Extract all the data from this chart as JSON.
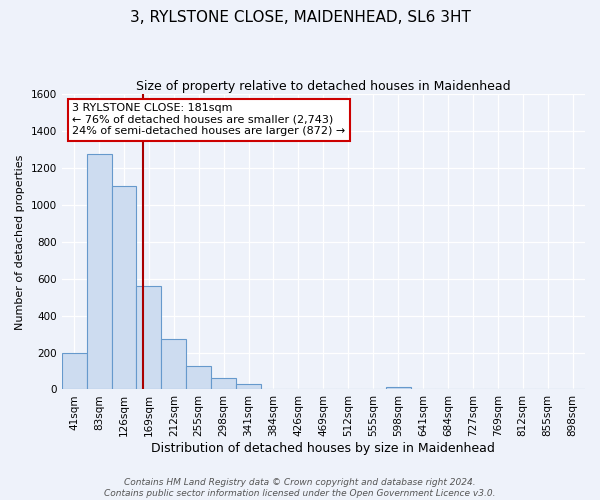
{
  "title": "3, RYLSTONE CLOSE, MAIDENHEAD, SL6 3HT",
  "subtitle": "Size of property relative to detached houses in Maidenhead",
  "xlabel": "Distribution of detached houses by size in Maidenhead",
  "ylabel": "Number of detached properties",
  "footer_lines": [
    "Contains HM Land Registry data © Crown copyright and database right 2024.",
    "Contains public sector information licensed under the Open Government Licence v3.0."
  ],
  "bin_labels": [
    "41sqm",
    "83sqm",
    "126sqm",
    "169sqm",
    "212sqm",
    "255sqm",
    "298sqm",
    "341sqm",
    "384sqm",
    "426sqm",
    "469sqm",
    "512sqm",
    "555sqm",
    "598sqm",
    "641sqm",
    "684sqm",
    "727sqm",
    "769sqm",
    "812sqm",
    "855sqm",
    "898sqm"
  ],
  "bar_values": [
    200,
    1275,
    1100,
    560,
    275,
    125,
    60,
    30,
    0,
    0,
    0,
    0,
    0,
    15,
    0,
    0,
    0,
    0,
    0,
    0,
    0
  ],
  "bar_color": "#cddcf0",
  "bar_edge_color": "#6699cc",
  "ylim": [
    0,
    1600
  ],
  "yticks": [
    0,
    200,
    400,
    600,
    800,
    1000,
    1200,
    1400,
    1600
  ],
  "vline_x_index": 3.26,
  "vline_color": "#aa0000",
  "annotation_line1": "3 RYLSTONE CLOSE: 181sqm",
  "annotation_line2": "← 76% of detached houses are smaller (2,743)",
  "annotation_line3": "24% of semi-detached houses are larger (872) →",
  "annotation_box_color": "#ffffff",
  "annotation_box_edge_color": "#cc0000",
  "background_color": "#eef2fa",
  "plot_bg_color": "#eef2fa",
  "grid_color": "#ffffff",
  "title_fontsize": 11,
  "subtitle_fontsize": 9,
  "xlabel_fontsize": 9,
  "ylabel_fontsize": 8,
  "tick_fontsize": 7.5,
  "annotation_fontsize": 8,
  "footer_fontsize": 6.5
}
